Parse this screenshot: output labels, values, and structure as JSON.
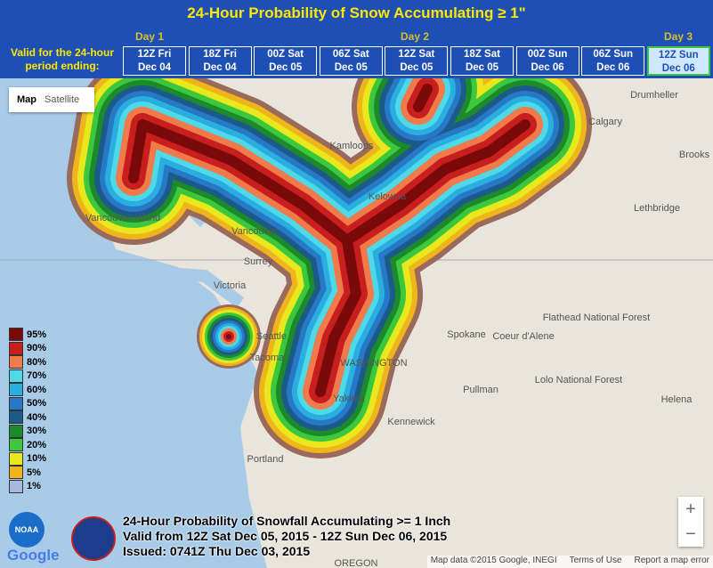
{
  "header": {
    "title": "24-Hour Probability of Snow Accumulating ≥ 1\"",
    "valid_label": [
      "Valid for the 24-hour",
      "period ending:"
    ],
    "days": [
      "Day 1",
      "Day 2",
      "Day 3"
    ],
    "periods": [
      [
        "12Z Fri",
        "Dec 04"
      ],
      [
        "18Z Fri",
        "Dec 04"
      ],
      [
        "00Z Sat",
        "Dec 05"
      ],
      [
        "06Z Sat",
        "Dec 05"
      ],
      [
        "12Z Sat",
        "Dec 05"
      ],
      [
        "18Z Sat",
        "Dec 05"
      ],
      [
        "00Z Sun",
        "Dec 06"
      ],
      [
        "06Z Sun",
        "Dec 06"
      ],
      [
        "12Z Sun",
        "Dec 06"
      ]
    ]
  },
  "map_type": [
    "Map",
    "Satellite"
  ],
  "legend": [
    {
      "label": "95%",
      "color": "#7a0a0a"
    },
    {
      "label": "90%",
      "color": "#c81e1e"
    },
    {
      "label": "80%",
      "color": "#f07a4a"
    },
    {
      "label": "70%",
      "color": "#4fd8e8"
    },
    {
      "label": "60%",
      "color": "#2aaee0"
    },
    {
      "label": "50%",
      "color": "#2878c8"
    },
    {
      "label": "40%",
      "color": "#1c5a8a"
    },
    {
      "label": "30%",
      "color": "#1c8a2a"
    },
    {
      "label": "20%",
      "color": "#3cc83c"
    },
    {
      "label": "10%",
      "color": "#e8e81c"
    },
    {
      "label": "5%",
      "color": "#f0b41c"
    },
    {
      "label": "1%",
      "color": "#a8b8e0"
    }
  ],
  "places": [
    "Drumheller",
    "Calgary",
    "Brooks",
    "Lethbridge",
    "Kamloops",
    "Kelowna",
    "Vancouver",
    "Surrey",
    "Victoria",
    "Seattle",
    "Tacoma",
    "Spokane",
    "Coeur d'Alene",
    "WASHINGTON",
    "Pullman",
    "Kennewick",
    "Yakima",
    "Portland",
    "Flathead National Forest",
    "Lolo National Forest",
    "Helena",
    "Vancouver Island",
    "OREGON"
  ],
  "footer": [
    "24-Hour Probability of Snowfall Accumulating >= 1 Inch",
    "Valid from 12Z Sat Dec 05, 2015 - 12Z Sun Dec 06, 2015",
    "Issued: 0741Z Thu Dec 03, 2015"
  ],
  "attribution": [
    "Map data ©2015 Google, INEGI",
    "Terms of Use",
    "Report a map error"
  ],
  "zoom": [
    "+",
    "−"
  ],
  "logos": [
    "NOAA",
    "Google"
  ]
}
